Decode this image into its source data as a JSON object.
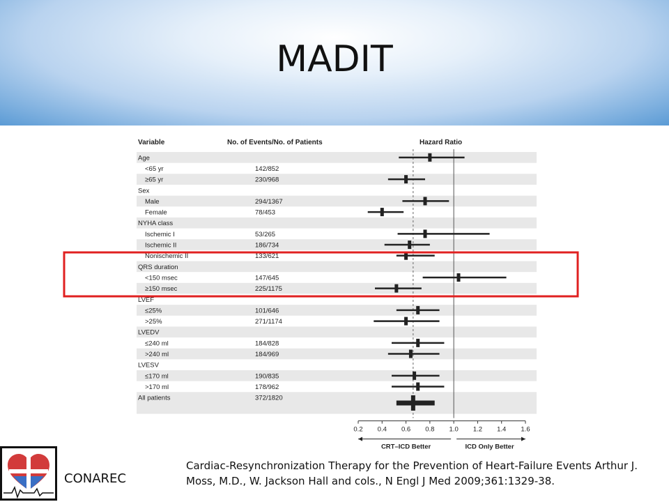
{
  "slide": {
    "title": "MADIT",
    "brand": "CONAREC",
    "citation": "Cardiac-Resynchronization Therapy for the Prevention  of Heart-Failure Events Arthur J. Moss, M.D., W. Jackson Hall and cols., N Engl J Med 2009;361:1329-38."
  },
  "colors": {
    "highlight_box": "#e02020",
    "row_band": "#e8e8e8",
    "marker": "#222222"
  },
  "chart_data": {
    "type": "forest",
    "columns": [
      "Variable",
      "No. of Events/No. of Patients",
      "Hazard Ratio"
    ],
    "xlim": [
      0.2,
      1.6
    ],
    "xticks": [
      "0.2",
      "0.4",
      "0.6",
      "0.8",
      "1.0",
      "1.2",
      "1.4",
      "1.6"
    ],
    "reference_line": 1.0,
    "overall_line": 0.66,
    "left_label": "CRT–ICD Better",
    "right_label": "ICD Only Better",
    "highlighted_group": "QRS duration",
    "rows": [
      {
        "label": "Age",
        "events": "",
        "hr": 0.8,
        "lo": 0.54,
        "hi": 1.09,
        "header": true
      },
      {
        "label": "<65 yr",
        "events": "142/852",
        "hr": null,
        "lo": null,
        "hi": null
      },
      {
        "label": "≥65 yr",
        "events": "230/968",
        "hr": 0.6,
        "lo": 0.45,
        "hi": 0.76
      },
      {
        "label": "Sex",
        "events": "",
        "hr": null,
        "lo": null,
        "hi": null,
        "header": true
      },
      {
        "label": "Male",
        "events": "294/1367",
        "hr": 0.76,
        "lo": 0.57,
        "hi": 0.96
      },
      {
        "label": "Female",
        "events": "78/453",
        "hr": 0.4,
        "lo": 0.28,
        "hi": 0.58
      },
      {
        "label": "NYHA class",
        "events": "",
        "hr": null,
        "lo": null,
        "hi": null,
        "header": true
      },
      {
        "label": "Ischemic I",
        "events": "53/265",
        "hr": 0.76,
        "lo": 0.53,
        "hi": 1.3
      },
      {
        "label": "Ischemic II",
        "events": "186/734",
        "hr": 0.63,
        "lo": 0.42,
        "hi": 0.8
      },
      {
        "label": "Nonischemic II",
        "events": "133/621",
        "hr": 0.6,
        "lo": 0.52,
        "hi": 0.84
      },
      {
        "label": "QRS duration",
        "events": "",
        "hr": null,
        "lo": null,
        "hi": null,
        "header": true
      },
      {
        "label": "<150 msec",
        "events": "147/645",
        "hr": 1.04,
        "lo": 0.74,
        "hi": 1.44
      },
      {
        "label": "≥150 msec",
        "events": "225/1175",
        "hr": 0.52,
        "lo": 0.34,
        "hi": 0.73
      },
      {
        "label": "LVEF",
        "events": "",
        "hr": null,
        "lo": null,
        "hi": null,
        "header": true
      },
      {
        "label": "≤25%",
        "events": "101/646",
        "hr": 0.7,
        "lo": 0.52,
        "hi": 0.88
      },
      {
        "label": ">25%",
        "events": "271/1174",
        "hr": 0.6,
        "lo": 0.33,
        "hi": 0.88
      },
      {
        "label": "LVEDV",
        "events": "",
        "hr": null,
        "lo": null,
        "hi": null,
        "header": true
      },
      {
        "label": "≤240 ml",
        "events": "184/828",
        "hr": 0.7,
        "lo": 0.48,
        "hi": 0.92
      },
      {
        "label": ">240 ml",
        "events": "184/969",
        "hr": 0.64,
        "lo": 0.45,
        "hi": 0.88
      },
      {
        "label": "LVESV",
        "events": "",
        "hr": null,
        "lo": null,
        "hi": null,
        "header": true
      },
      {
        "label": "≤170 ml",
        "events": "190/835",
        "hr": 0.67,
        "lo": 0.48,
        "hi": 0.88
      },
      {
        "label": ">170 ml",
        "events": "178/962",
        "hr": 0.7,
        "lo": 0.48,
        "hi": 0.92
      },
      {
        "label": "All patients",
        "events": "372/1820",
        "hr": 0.66,
        "lo": 0.52,
        "hi": 0.84,
        "overall": true
      }
    ]
  }
}
